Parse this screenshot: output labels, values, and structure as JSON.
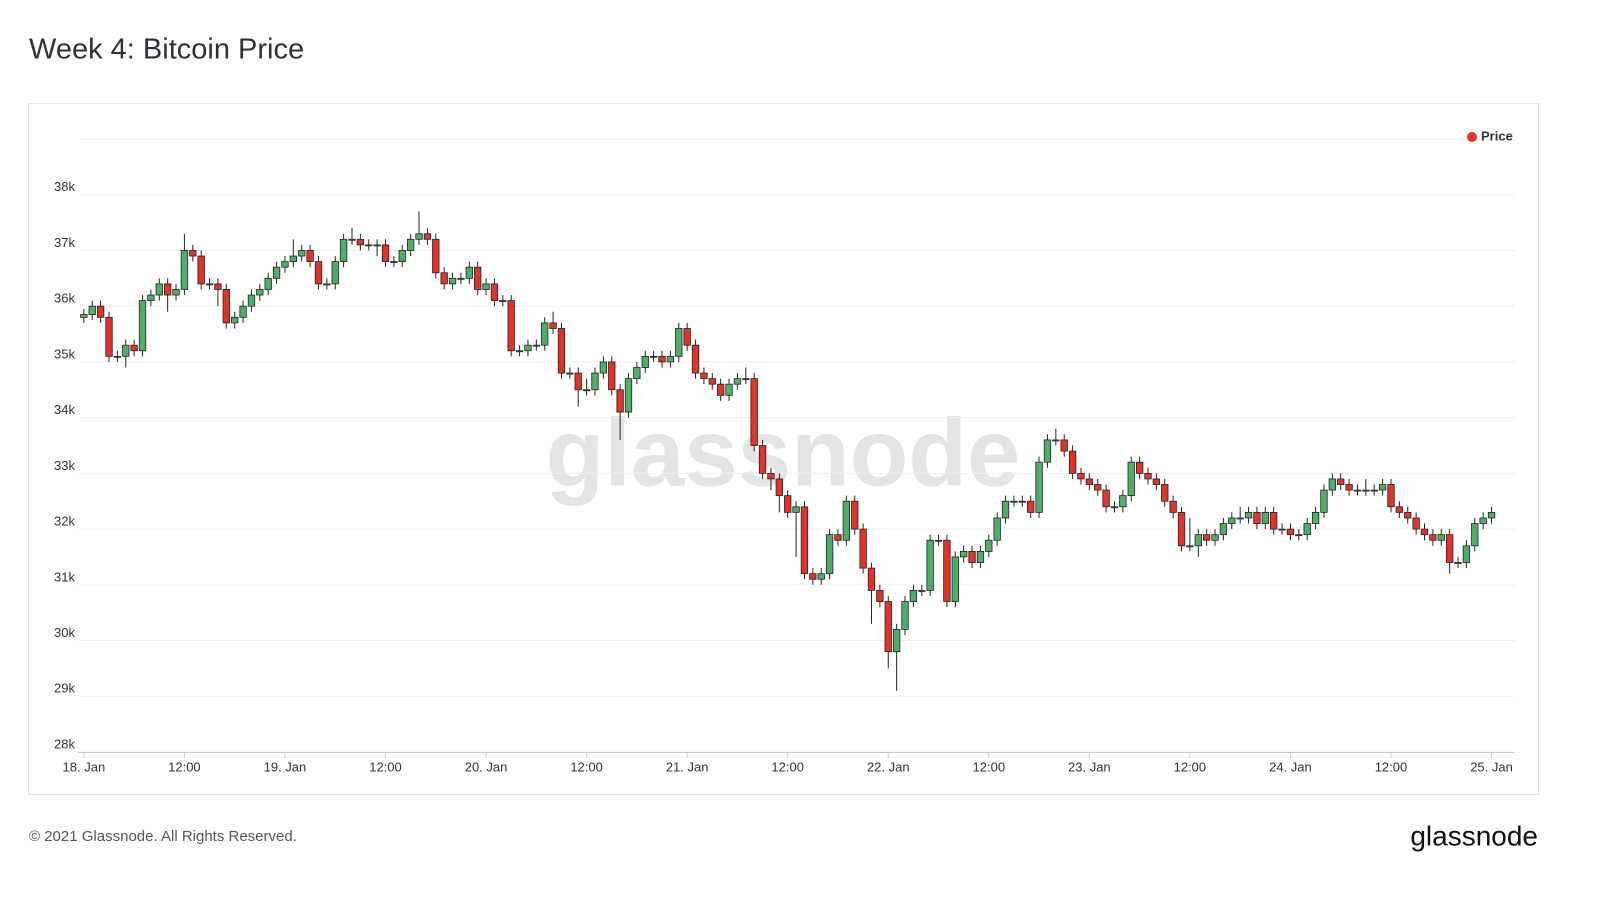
{
  "chart_data": {
    "type": "candlestick",
    "title": "Week 4: Bitcoin Price",
    "legend": "Price",
    "legend_position": "top-right",
    "legend_color": "#e0342b",
    "up_color": "#4fae6a",
    "down_color": "#e0342b",
    "grid": true,
    "watermark": "glassnode",
    "footer": "© 2021 Glassnode. All Rights Reserved.",
    "logo": "glassnode",
    "xlim": [
      -0.7,
      170.8
    ],
    "xticks": [
      {
        "value": 0,
        "label": "18. Jan"
      },
      {
        "value": 12,
        "label": "12:00"
      },
      {
        "value": 24,
        "label": "19. Jan"
      },
      {
        "value": 36,
        "label": "12:00"
      },
      {
        "value": 48,
        "label": "20. Jan"
      },
      {
        "value": 60,
        "label": "12:00"
      },
      {
        "value": 72,
        "label": "21. Jan"
      },
      {
        "value": 84,
        "label": "12:00"
      },
      {
        "value": 96,
        "label": "22. Jan"
      },
      {
        "value": 108,
        "label": "12:00"
      },
      {
        "value": 120,
        "label": "23. Jan"
      },
      {
        "value": 132,
        "label": "12:00"
      },
      {
        "value": 144,
        "label": "24. Jan"
      },
      {
        "value": 156,
        "label": "12:00"
      },
      {
        "value": 168,
        "label": "25. Jan"
      }
    ],
    "ylim": [
      28000,
      39000
    ],
    "yticks": [
      {
        "value": 28000,
        "label": "28k"
      },
      {
        "value": 29000,
        "label": "29k"
      },
      {
        "value": 30000,
        "label": "30k"
      },
      {
        "value": 31000,
        "label": "31k"
      },
      {
        "value": 32000,
        "label": "32k"
      },
      {
        "value": 33000,
        "label": "33k"
      },
      {
        "value": 34000,
        "label": "34k"
      },
      {
        "value": 35000,
        "label": "35k"
      },
      {
        "value": 36000,
        "label": "36k"
      },
      {
        "value": 37000,
        "label": "37k"
      },
      {
        "value": 38000,
        "label": "38k"
      }
    ],
    "x": [
      0,
      1,
      2,
      3,
      4,
      5,
      6,
      7,
      8,
      9,
      10,
      11,
      12,
      13,
      14,
      15,
      16,
      17,
      18,
      19,
      20,
      21,
      22,
      23,
      24,
      25,
      26,
      27,
      28,
      29,
      30,
      31,
      32,
      33,
      34,
      35,
      36,
      37,
      38,
      39,
      40,
      41,
      42,
      43,
      44,
      45,
      46,
      47,
      48,
      49,
      50,
      51,
      52,
      53,
      54,
      55,
      56,
      57,
      58,
      59,
      60,
      61,
      62,
      63,
      64,
      65,
      66,
      67,
      68,
      69,
      70,
      71,
      72,
      73,
      74,
      75,
      76,
      77,
      78,
      79,
      80,
      81,
      82,
      83,
      84,
      85,
      86,
      87,
      88,
      89,
      90,
      91,
      92,
      93,
      94,
      95,
      96,
      97,
      98,
      99,
      100,
      101,
      102,
      103,
      104,
      105,
      106,
      107,
      108,
      109,
      110,
      111,
      112,
      113,
      114,
      115,
      116,
      117,
      118,
      119,
      120,
      121,
      122,
      123,
      124,
      125,
      126,
      127,
      128,
      129,
      130,
      131,
      132,
      133,
      134,
      135,
      136,
      137,
      138,
      139,
      140,
      141,
      142,
      143,
      144,
      145,
      146,
      147,
      148,
      149,
      150,
      151,
      152,
      153,
      154,
      155,
      156,
      157,
      158,
      159,
      160,
      161,
      162,
      163,
      164,
      165,
      166,
      167,
      168
    ],
    "open": [
      35800,
      35850,
      36000,
      35800,
      35100,
      35100,
      35300,
      35200,
      36100,
      36200,
      36400,
      36200,
      36300,
      37000,
      36900,
      36400,
      36400,
      36300,
      35700,
      35800,
      36000,
      36200,
      36300,
      36500,
      36700,
      36800,
      36900,
      37000,
      36800,
      36400,
      36400,
      36800,
      37200,
      37200,
      37100,
      37100,
      37100,
      36800,
      36800,
      37000,
      37200,
      37300,
      37200,
      36600,
      36400,
      36500,
      36500,
      36700,
      36300,
      36400,
      36100,
      36100,
      35200,
      35200,
      35300,
      35300,
      35700,
      35600,
      34800,
      34800,
      34500,
      34500,
      34800,
      35000,
      34500,
      34100,
      34700,
      34900,
      35100,
      35100,
      35000,
      35100,
      35600,
      35300,
      34800,
      34700,
      34600,
      34400,
      34600,
      34700,
      34700,
      33500,
      33000,
      32900,
      32600,
      32300,
      32400,
      31200,
      31100,
      31200,
      31900,
      31800,
      32500,
      32000,
      31300,
      30900,
      30700,
      29800,
      30200,
      30700,
      30900,
      30900,
      31800,
      31800,
      30700,
      31500,
      31600,
      31400,
      31600,
      31800,
      32200,
      32500,
      32500,
      32500,
      32300,
      33200,
      33600,
      33600,
      33400,
      33000,
      32900,
      32800,
      32700,
      32400,
      32400,
      32600,
      33200,
      33000,
      32900,
      32800,
      32500,
      32300,
      31700,
      31700,
      31900,
      31800,
      31900,
      32100,
      32200,
      32200,
      32300,
      32100,
      32300,
      32000,
      32000,
      31900,
      31900,
      32100,
      32300,
      32700,
      32900,
      32800,
      32700,
      32700,
      32700,
      32700,
      32800,
      32400,
      32300,
      32200,
      32000,
      31900,
      31800,
      31900,
      31400,
      31400,
      31700,
      32100,
      32200
    ],
    "high": [
      35950,
      36100,
      36100,
      35900,
      35200,
      35400,
      35400,
      36200,
      36300,
      36500,
      36500,
      36400,
      37300,
      37100,
      37000,
      36500,
      36500,
      36400,
      35900,
      36100,
      36300,
      36400,
      36600,
      36800,
      36900,
      37200,
      37100,
      37100,
      36900,
      36500,
      36900,
      37300,
      37400,
      37300,
      37200,
      37200,
      37200,
      36900,
      37100,
      37300,
      37700,
      37400,
      37300,
      36700,
      36600,
      36600,
      36800,
      36800,
      36500,
      36500,
      36200,
      36200,
      35300,
      35400,
      35400,
      35800,
      35900,
      35700,
      34900,
      34900,
      34700,
      34900,
      35100,
      35100,
      34600,
      34800,
      35000,
      35200,
      35200,
      35200,
      35200,
      35700,
      35700,
      35400,
      34900,
      34800,
      34700,
      34700,
      34800,
      34900,
      34800,
      33600,
      33100,
      33000,
      32700,
      32500,
      32500,
      31300,
      31300,
      32000,
      32000,
      32600,
      32600,
      32100,
      31400,
      31000,
      30800,
      30300,
      30800,
      31000,
      31000,
      31900,
      31900,
      31900,
      31600,
      31700,
      31700,
      31700,
      31900,
      32300,
      32600,
      32600,
      32600,
      32600,
      33300,
      33700,
      33800,
      33700,
      33500,
      33100,
      33000,
      32900,
      32800,
      32500,
      32700,
      33300,
      33300,
      33100,
      33000,
      32900,
      32600,
      32400,
      32200,
      32000,
      32000,
      32000,
      32200,
      32300,
      32400,
      32400,
      32400,
      32400,
      32400,
      32100,
      32100,
      32000,
      32200,
      32400,
      32800,
      33000,
      33000,
      32900,
      32800,
      32900,
      32800,
      32900,
      32900,
      32500,
      32400,
      32300,
      32100,
      32000,
      32000,
      32000,
      31500,
      31800,
      32200,
      32300,
      32400
    ],
    "low": [
      35700,
      35750,
      35700,
      35000,
      35000,
      34900,
      35100,
      35100,
      36000,
      36100,
      35900,
      36100,
      36200,
      36800,
      36300,
      36300,
      36000,
      35600,
      35600,
      35700,
      35900,
      36100,
      36200,
      36400,
      36600,
      36700,
      36800,
      36700,
      36300,
      36300,
      36300,
      36700,
      37100,
      37000,
      37000,
      36900,
      36700,
      36700,
      36700,
      36900,
      37100,
      37100,
      36500,
      36300,
      36300,
      36400,
      36400,
      36200,
      36200,
      36000,
      36000,
      35100,
      35100,
      35100,
      35200,
      35200,
      35500,
      34700,
      34700,
      34200,
      34400,
      34400,
      34700,
      34400,
      33600,
      34000,
      34600,
      34800,
      35000,
      34900,
      34900,
      35000,
      35200,
      34700,
      34600,
      34500,
      34300,
      34300,
      34500,
      34600,
      33400,
      32900,
      32700,
      32300,
      32200,
      31500,
      31100,
      31000,
      31000,
      31100,
      31700,
      31700,
      31900,
      31200,
      30300,
      30600,
      29500,
      29100,
      30100,
      30600,
      30800,
      30800,
      31700,
      30600,
      30600,
      31400,
      31300,
      31300,
      31500,
      31700,
      32100,
      32400,
      32400,
      32200,
      32200,
      33100,
      33500,
      33300,
      32900,
      32800,
      32700,
      32600,
      32300,
      32300,
      32300,
      32500,
      32900,
      32800,
      32700,
      32400,
      32200,
      31600,
      31600,
      31500,
      31700,
      31700,
      31800,
      32000,
      32100,
      32100,
      32000,
      32000,
      31900,
      31900,
      31800,
      31800,
      31800,
      32000,
      32200,
      32600,
      32700,
      32600,
      32600,
      32600,
      32600,
      32600,
      32300,
      32200,
      32100,
      31900,
      31800,
      31700,
      31700,
      31200,
      31300,
      31300,
      31600,
      32000,
      32100
    ],
    "close": [
      35850,
      36000,
      35800,
      35100,
      35100,
      35300,
      35200,
      36100,
      36200,
      36400,
      36200,
      36300,
      37000,
      36900,
      36400,
      36400,
      36300,
      35700,
      35800,
      36000,
      36200,
      36300,
      36500,
      36700,
      36800,
      36900,
      37000,
      36800,
      36400,
      36400,
      36800,
      37200,
      37200,
      37100,
      37100,
      37100,
      36800,
      36800,
      37000,
      37200,
      37300,
      37200,
      36600,
      36400,
      36500,
      36500,
      36700,
      36300,
      36400,
      36100,
      36100,
      35200,
      35200,
      35300,
      35300,
      35700,
      35600,
      34800,
      34800,
      34500,
      34500,
      34800,
      35000,
      34500,
      34100,
      34700,
      34900,
      35100,
      35100,
      35000,
      35100,
      35600,
      35300,
      34800,
      34700,
      34600,
      34400,
      34600,
      34700,
      34700,
      33500,
      33000,
      32900,
      32600,
      32300,
      32400,
      31200,
      31100,
      31200,
      31900,
      31800,
      32500,
      32000,
      31300,
      30900,
      30700,
      29800,
      30200,
      30700,
      30900,
      30900,
      31800,
      31800,
      30700,
      31500,
      31600,
      31400,
      31600,
      31800,
      32200,
      32500,
      32500,
      32500,
      32300,
      33200,
      33600,
      33600,
      33400,
      33000,
      32900,
      32800,
      32700,
      32400,
      32400,
      32600,
      33200,
      33000,
      32900,
      32800,
      32500,
      32300,
      31700,
      31700,
      31900,
      31800,
      31900,
      32100,
      32200,
      32200,
      32300,
      32100,
      32300,
      32000,
      32000,
      31900,
      31900,
      32100,
      32300,
      32700,
      32900,
      32800,
      32700,
      32700,
      32700,
      32700,
      32800,
      32400,
      32300,
      32200,
      32000,
      31900,
      31800,
      31900,
      31400,
      31400,
      31700,
      32100,
      32200,
      32300
    ]
  }
}
